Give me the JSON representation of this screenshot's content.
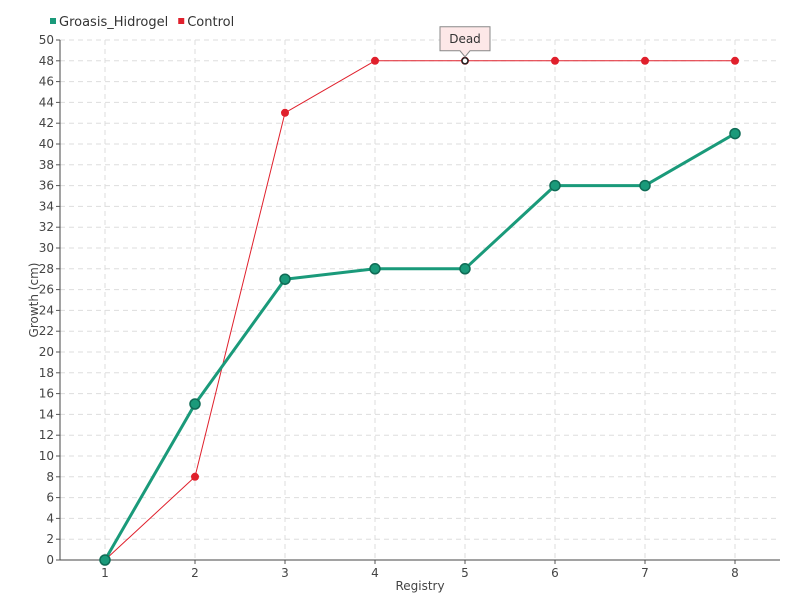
{
  "chart_data": {
    "type": "line",
    "xlabel": "Registry",
    "ylabel": "Growth (cm)",
    "x": [
      1,
      2,
      3,
      4,
      5,
      6,
      7,
      8
    ],
    "ylim": [
      0,
      50
    ],
    "y_tick_step": 2,
    "grid": true,
    "legend_position": "top-left",
    "series": [
      {
        "name": "Groasis_Hidrogel",
        "color": "#1a9a7a",
        "values": [
          0,
          15,
          27,
          28,
          28,
          36,
          36,
          41
        ]
      },
      {
        "name": "Control",
        "color": "#e0202c",
        "values": [
          0,
          8,
          43,
          48,
          48,
          48,
          48,
          48
        ]
      }
    ],
    "annotations": [
      {
        "text": "Dead",
        "series": "Control",
        "x": 5,
        "y": 48
      }
    ]
  }
}
